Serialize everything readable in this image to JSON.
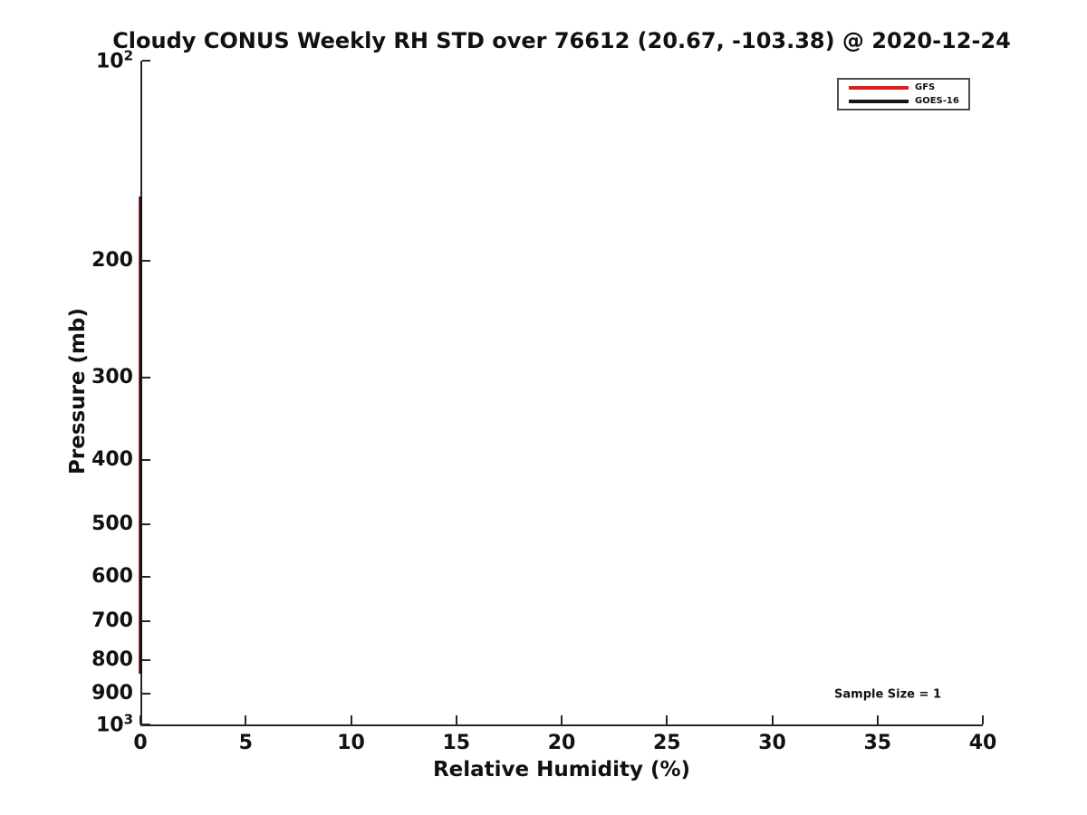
{
  "chart_data": {
    "type": "line",
    "title": "Cloudy CONUS Weekly RH STD over 76612 (20.67, -103.38) @ 2020-12-24",
    "xlabel": "Relative Humidity (%)",
    "ylabel": "Pressure (mb)",
    "xlim": [
      0,
      40
    ],
    "ylim_pressure_mb": [
      100,
      1000
    ],
    "yscale": "log",
    "grid": false,
    "x_ticks": [
      {
        "v": 0,
        "label": "0"
      },
      {
        "v": 5,
        "label": "5"
      },
      {
        "v": 10,
        "label": "10"
      },
      {
        "v": 15,
        "label": "15"
      },
      {
        "v": 20,
        "label": "20"
      },
      {
        "v": 25,
        "label": "25"
      },
      {
        "v": 30,
        "label": "30"
      },
      {
        "v": 35,
        "label": "35"
      },
      {
        "v": 40,
        "label": "40"
      }
    ],
    "y_ticks": [
      {
        "p": 100,
        "label": "10",
        "sup": "2"
      },
      {
        "p": 200,
        "label": "200"
      },
      {
        "p": 300,
        "label": "300"
      },
      {
        "p": 400,
        "label": "400"
      },
      {
        "p": 500,
        "label": "500"
      },
      {
        "p": 600,
        "label": "600"
      },
      {
        "p": 700,
        "label": "700"
      },
      {
        "p": 800,
        "label": "800"
      },
      {
        "p": 900,
        "label": "900"
      },
      {
        "p": 1000,
        "label": "10",
        "sup": "3"
      }
    ],
    "legend": {
      "position": "upper-right",
      "entries": [
        {
          "name": "GFS",
          "color": "#d42222"
        },
        {
          "name": "GOES-16",
          "color": "#151515"
        }
      ]
    },
    "annotation": {
      "text": "Sample Size = 1"
    },
    "series": [
      {
        "name": "GFS",
        "color": "#d42222",
        "rh_std_percent": 0,
        "pressure_top_mb": 160,
        "pressure_bottom_mb": 840
      },
      {
        "name": "GOES-16",
        "color": "#151515",
        "rh_std_percent": 0,
        "pressure_top_mb": 160,
        "pressure_bottom_mb": 840
      }
    ]
  }
}
